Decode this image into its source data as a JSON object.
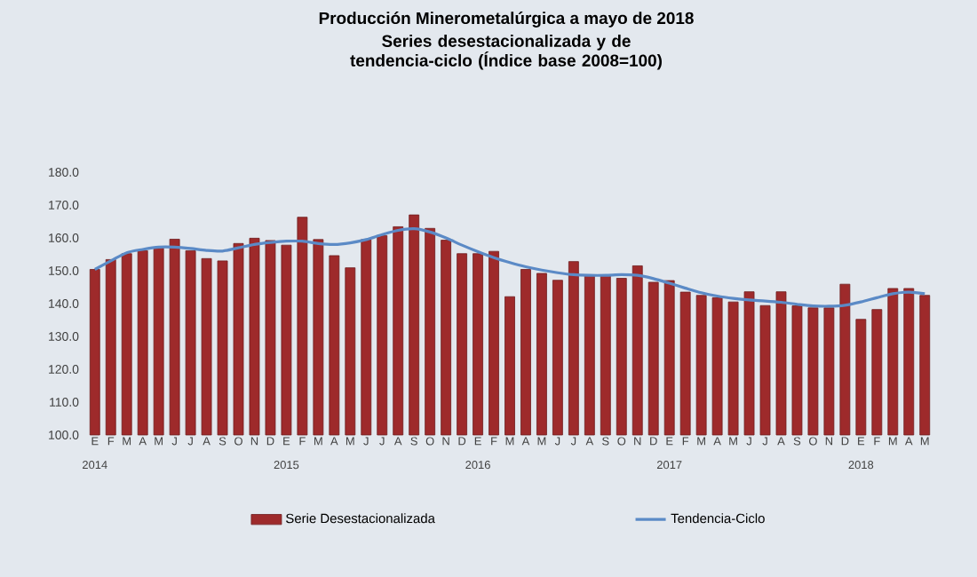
{
  "chart_data": {
    "type": "bar",
    "title": "Producción Minerometalúrgica a mayo de 2018",
    "subtitle": "Series desestacionalizada y de tendencia-ciclo (Índice base 2008=100)",
    "categories": [
      "E",
      "F",
      "M",
      "A",
      "M",
      "J",
      "J",
      "A",
      "S",
      "O",
      "N",
      "D",
      "E",
      "F",
      "M",
      "A",
      "M",
      "J",
      "J",
      "A",
      "S",
      "O",
      "N",
      "D",
      "E",
      "F",
      "M",
      "A",
      "M",
      "J",
      "J",
      "A",
      "S",
      "O",
      "N",
      "D",
      "E",
      "F",
      "M",
      "A",
      "M",
      "J",
      "J",
      "A",
      "S",
      "O",
      "N",
      "D",
      "E",
      "F",
      "M",
      "A",
      "M"
    ],
    "series": [
      {
        "name": "Serie Desestacionalizada",
        "color": "#9e2a2b",
        "values": [
          150.4,
          153.4,
          155.2,
          156.1,
          156.9,
          159.6,
          156.1,
          153.7,
          153,
          158.3,
          159.9,
          159.2,
          157.8,
          166.3,
          159.5,
          154.6,
          150.9,
          159.5,
          160.7,
          163.4,
          167,
          162.9,
          159.3,
          155.2,
          155.2,
          155.9,
          142.1,
          150.4,
          149.2,
          147.1,
          152.8,
          148.6,
          148.6,
          147.7,
          151.5,
          146.5,
          147,
          143.5,
          142.5,
          141.8,
          140.5,
          143.6,
          139.4,
          143.6,
          139.3,
          138.7,
          138.7,
          145.9,
          135.2,
          138.2,
          144.6,
          144.6,
          142.5
        ]
      },
      {
        "name": "Tendencia-Ciclo",
        "type": "line",
        "color": "#5b8ac6",
        "values": [
          150.4,
          153,
          155.5,
          156.5,
          157.2,
          157.2,
          156.8,
          156.2,
          156,
          157,
          158,
          158.6,
          159,
          159,
          158.3,
          158,
          158.5,
          159.5,
          161,
          162.3,
          162.8,
          161.8,
          160,
          157.8,
          155.8,
          154,
          152.5,
          151.2,
          150.2,
          149.4,
          148.8,
          148.6,
          148.6,
          148.8,
          148.6,
          147.6,
          146.2,
          144.7,
          143.3,
          142.3,
          141.6,
          141.1,
          140.8,
          140.4,
          139.8,
          139.3,
          139.2,
          139.5,
          140.5,
          141.8,
          143,
          143.5,
          143
        ]
      }
    ],
    "ylim": [
      100,
      180
    ],
    "yticks": [
      {
        "value": 100,
        "label": "100.0"
      },
      {
        "value": 110,
        "label": "110.0"
      },
      {
        "value": 120,
        "label": "120.0"
      },
      {
        "value": 130,
        "label": "130.0"
      },
      {
        "value": 140,
        "label": "140.0"
      },
      {
        "value": 150,
        "label": "150.0"
      },
      {
        "value": 160,
        "label": "160.0"
      },
      {
        "value": 170,
        "label": "170.0"
      },
      {
        "value": 180,
        "label": "180.0"
      }
    ],
    "annotations": [
      "2014",
      "2015",
      "2016",
      "2017",
      "2018"
    ],
    "legend": "bottom"
  }
}
